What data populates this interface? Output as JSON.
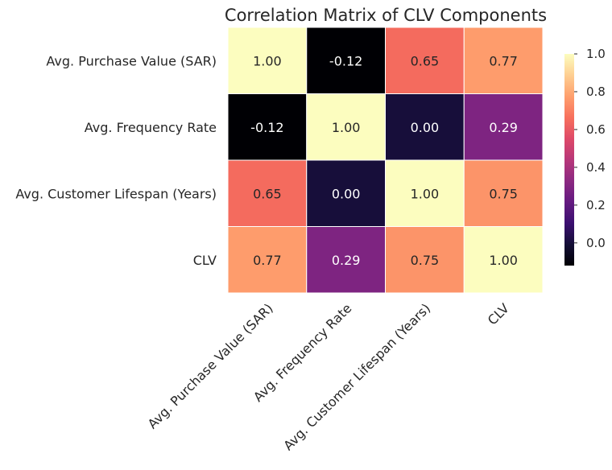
{
  "chart_data": {
    "type": "heatmap",
    "title": "Correlation Matrix of CLV Components",
    "rows": [
      "Avg. Purchase Value (SAR)",
      "Avg. Frequency Rate",
      "Avg. Customer Lifespan (Years)",
      "CLV"
    ],
    "columns": [
      "Avg. Purchase Value (SAR)",
      "Avg. Frequency Rate",
      "Avg. Customer Lifespan (Years)",
      "CLV"
    ],
    "values": [
      [
        1.0,
        -0.12,
        0.65,
        0.77
      ],
      [
        -0.12,
        1.0,
        0.0,
        0.29
      ],
      [
        0.65,
        0.0,
        1.0,
        0.75
      ],
      [
        0.77,
        0.29,
        0.75,
        1.0
      ]
    ],
    "cell_labels": [
      [
        "1.00",
        "-0.12",
        "0.65",
        "0.77"
      ],
      [
        "-0.12",
        "1.00",
        "0.00",
        "0.29"
      ],
      [
        "0.65",
        "0.00",
        "1.00",
        "0.75"
      ],
      [
        "0.77",
        "0.29",
        "0.75",
        "1.00"
      ]
    ],
    "colormap": "magma",
    "vmin": -0.12,
    "vmax": 1.0,
    "colorbar": {
      "ticks": [
        0.0,
        0.2,
        0.4,
        0.6,
        0.8,
        1.0
      ],
      "tick_labels": [
        "0.0",
        "0.2",
        "0.4",
        "0.6",
        "0.8",
        "1.0"
      ]
    },
    "grid_line_color": "#ffffff"
  }
}
